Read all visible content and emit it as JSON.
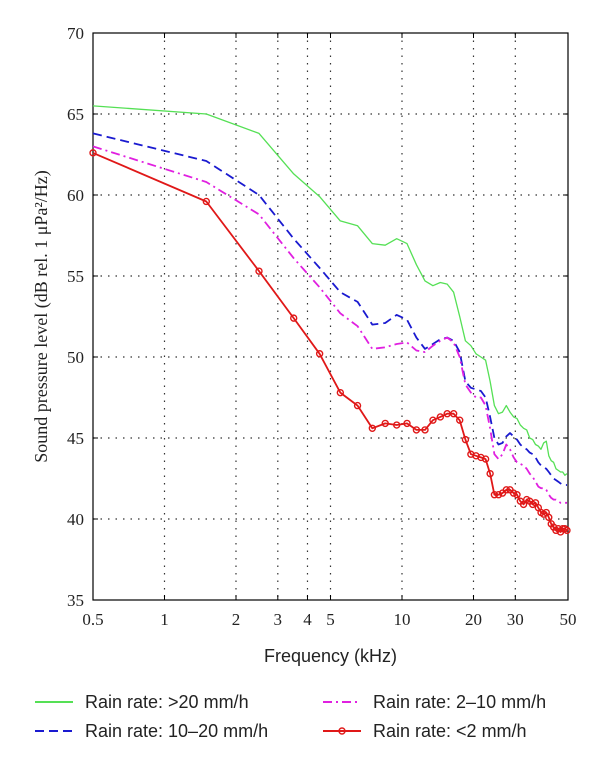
{
  "chart_data": {
    "type": "line",
    "xlabel": "Frequency (kHz)",
    "ylabel": "Sound pressure level (dB rel. 1 μPa²/Hz)",
    "x_scale": "log",
    "xlim": [
      0.5,
      50
    ],
    "ylim": [
      35,
      70
    ],
    "x_ticks": [
      0.5,
      1,
      2,
      3,
      4,
      5,
      10,
      20,
      30,
      50
    ],
    "x_tick_labels": [
      "0.5",
      "1",
      "2",
      "3",
      "4",
      "5",
      "10",
      "20",
      "30",
      "50"
    ],
    "y_ticks": [
      35,
      40,
      45,
      50,
      55,
      60,
      65,
      70
    ],
    "y_tick_labels": [
      "35",
      "40",
      "45",
      "50",
      "55",
      "60",
      "65",
      "70"
    ],
    "grid": "dotted",
    "legend_position": "bottom",
    "series": [
      {
        "name": "Rain rate: >20 mm/h",
        "color": "#55e055",
        "style": "solid",
        "marker": "none",
        "x": [
          0.5,
          1.5,
          2.5,
          3.5,
          4.5,
          5.5,
          6.5,
          7.5,
          8.5,
          9.5,
          10.5,
          11.5,
          12.5,
          13.5,
          14.5,
          15.5,
          16.5,
          17.5,
          18.5,
          19.5,
          20.5,
          21.5,
          22.5,
          23.5,
          24.5,
          25.5,
          26.5,
          27.5,
          28.5,
          29.5,
          30.5,
          31.5,
          32.5,
          33.5,
          34.5,
          35.5,
          36.5,
          37.5,
          38.5,
          39.5,
          40.5,
          41.5,
          42.5,
          43.5,
          44.5,
          45.5,
          46.5,
          47.5,
          48.5,
          49.5
        ],
        "values": [
          65.5,
          65.0,
          63.8,
          61.3,
          59.9,
          58.4,
          58.1,
          57.0,
          56.9,
          57.3,
          57.0,
          55.7,
          54.7,
          54.4,
          54.6,
          54.5,
          54.0,
          52.5,
          51.0,
          50.7,
          50.2,
          50.0,
          49.8,
          48.5,
          47.0,
          46.5,
          46.6,
          47.0,
          46.6,
          46.3,
          46.2,
          45.8,
          45.6,
          45.5,
          45.0,
          44.9,
          44.6,
          44.5,
          44.3,
          44.7,
          44.8,
          43.9,
          43.6,
          43.5,
          43.1,
          43.0,
          42.9,
          42.9,
          42.7,
          42.8
        ]
      },
      {
        "name": "Rain rate: 10–20 mm/h",
        "color": "#1a1ad0",
        "style": "dashed",
        "marker": "none",
        "x": [
          0.5,
          1.5,
          2.5,
          3.5,
          4.5,
          5.5,
          6.5,
          7.5,
          8.5,
          9.5,
          10.5,
          11.5,
          12.5,
          13.5,
          14.5,
          15.5,
          16.5,
          17.5,
          18.5,
          19.5,
          20.5,
          21.5,
          22.5,
          23.5,
          24.5,
          25.5,
          26.5,
          27.5,
          28.5,
          29.5,
          30.5,
          31.5,
          32.5,
          33.5,
          34.5,
          35.5,
          36.5,
          37.5,
          38.5,
          39.5,
          40.5,
          41.5,
          42.5,
          43.5,
          44.5,
          45.5,
          46.5,
          47.5,
          48.5,
          49.5
        ],
        "values": [
          63.8,
          62.1,
          60.0,
          57.3,
          55.5,
          54.0,
          53.4,
          52.0,
          52.1,
          52.6,
          52.3,
          51.2,
          50.5,
          50.8,
          51.1,
          51.2,
          51.0,
          50.3,
          48.5,
          48.1,
          48.0,
          47.9,
          47.5,
          46.3,
          45.0,
          44.6,
          44.7,
          45.1,
          45.3,
          45.1,
          44.9,
          44.6,
          44.4,
          44.3,
          44.1,
          44.0,
          43.8,
          43.5,
          43.3,
          43.2,
          43.1,
          42.9,
          42.7,
          42.5,
          42.4,
          42.3,
          42.2,
          42.1,
          42.1,
          42.1
        ]
      },
      {
        "name": "Rain rate: 2–10 mm/h",
        "color": "#e020e0",
        "style": "dashdot",
        "marker": "none",
        "x": [
          0.5,
          1.5,
          2.5,
          3.5,
          4.5,
          5.5,
          6.5,
          7.5,
          8.5,
          9.5,
          10.5,
          11.5,
          12.5,
          13.5,
          14.5,
          15.5,
          16.5,
          17.5,
          18.5,
          19.5,
          20.5,
          21.5,
          22.5,
          23.5,
          24.5,
          25.5,
          26.5,
          27.5,
          28.5,
          29.5,
          30.5,
          31.5,
          32.5,
          33.5,
          34.5,
          35.5,
          36.5,
          37.5,
          38.5,
          39.5,
          40.5,
          41.5,
          42.5,
          43.5,
          44.5,
          45.5,
          46.5,
          47.5,
          48.5,
          49.5
        ],
        "values": [
          63.0,
          60.8,
          58.8,
          56.1,
          54.3,
          52.7,
          51.9,
          50.5,
          50.6,
          50.8,
          50.9,
          50.4,
          50.3,
          50.7,
          51.0,
          51.2,
          50.9,
          50.0,
          48.3,
          47.8,
          47.5,
          47.5,
          47.0,
          45.6,
          44.0,
          43.7,
          44.0,
          44.6,
          44.3,
          43.8,
          43.5,
          43.4,
          43.3,
          43.1,
          42.8,
          42.6,
          42.3,
          42.0,
          41.9,
          41.9,
          41.8,
          41.5,
          41.3,
          41.2,
          41.2,
          41.1,
          41.0,
          41.0,
          41.0,
          41.0
        ]
      },
      {
        "name": "Rain rate: <2 mm/h",
        "color": "#e01818",
        "style": "solid",
        "marker": "circle",
        "x": [
          0.5,
          1.5,
          2.5,
          3.5,
          4.5,
          5.5,
          6.5,
          7.5,
          8.5,
          9.5,
          10.5,
          11.5,
          12.5,
          13.5,
          14.5,
          15.5,
          16.5,
          17.5,
          18.5,
          19.5,
          20.5,
          21.5,
          22.5,
          23.5,
          24.5,
          25.5,
          26.5,
          27.5,
          28.5,
          29.5,
          30.5,
          31.5,
          32.5,
          33.5,
          34.5,
          35.5,
          36.5,
          37.5,
          38.5,
          39.5,
          40.5,
          41.5,
          42.5,
          43.5,
          44.5,
          45.5,
          46.5,
          47.5,
          48.5,
          49.5
        ],
        "values": [
          62.6,
          59.6,
          55.3,
          52.4,
          50.2,
          47.8,
          47.0,
          45.6,
          45.9,
          45.8,
          45.9,
          45.5,
          45.5,
          46.1,
          46.3,
          46.5,
          46.5,
          46.1,
          44.9,
          44.0,
          43.9,
          43.8,
          43.7,
          42.8,
          41.5,
          41.5,
          41.6,
          41.8,
          41.8,
          41.6,
          41.5,
          41.1,
          40.9,
          41.2,
          41.1,
          40.9,
          41.0,
          40.7,
          40.4,
          40.3,
          40.4,
          40.1,
          39.7,
          39.5,
          39.3,
          39.4,
          39.2,
          39.4,
          39.4,
          39.3
        ]
      }
    ]
  }
}
